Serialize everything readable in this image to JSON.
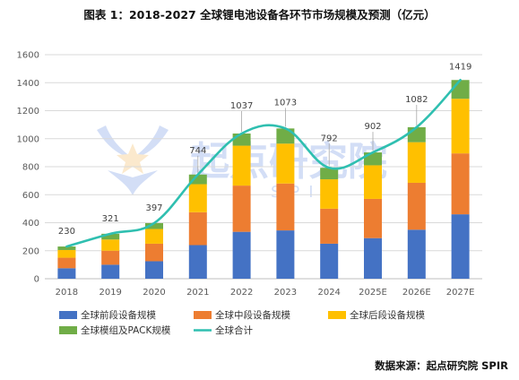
{
  "title": "图表 1：2018-2027 全球锂电池设备各环节市场规模及预测（亿元）",
  "source": "数据来源：起点研究院 SPIR",
  "watermark": {
    "main": "起点研究院",
    "sub": "SPIR"
  },
  "colors": {
    "front": "#4472C4",
    "middle": "#ED7D31",
    "back": "#FFC000",
    "pack": "#70AD47",
    "total": "#2FBFB0",
    "grid": "#D9D9D9",
    "axis": "#BFBFBF",
    "leader": "#A6A6A6"
  },
  "chart_data": {
    "type": "bar",
    "stacked": true,
    "categories": [
      "2018",
      "2019",
      "2020",
      "2021",
      "2022",
      "2023",
      "2024",
      "2025E",
      "2026E",
      "2027E"
    ],
    "series": [
      {
        "name": "全球前段设备规模",
        "values": [
          75,
          100,
          125,
          240,
          335,
          345,
          250,
          290,
          350,
          460
        ]
      },
      {
        "name": "全球中段设备规模",
        "values": [
          75,
          100,
          125,
          235,
          330,
          335,
          250,
          280,
          335,
          435
        ]
      },
      {
        "name": "全球后段设备规模",
        "values": [
          55,
          80,
          105,
          200,
          285,
          285,
          210,
          240,
          290,
          390
        ]
      },
      {
        "name": "全球模组及PACK规模",
        "values": [
          25,
          41,
          42,
          69,
          87,
          108,
          82,
          92,
          107,
          134
        ]
      }
    ],
    "line": {
      "name": "全球合计",
      "values": [
        230,
        321,
        397,
        744,
        1037,
        1073,
        792,
        902,
        1082,
        1419
      ]
    },
    "data_labels": [
      "230",
      "321",
      "397",
      "744",
      "1037",
      "1073",
      "792",
      "902",
      "1082",
      "1419"
    ],
    "ylim": [
      0,
      1600
    ],
    "yticks": [
      "0",
      "200",
      "400",
      "600",
      "800",
      "1000",
      "1200",
      "1400",
      "1600"
    ],
    "grid": true,
    "legend_position": "bottom",
    "title": "",
    "xlabel": "",
    "ylabel": ""
  }
}
